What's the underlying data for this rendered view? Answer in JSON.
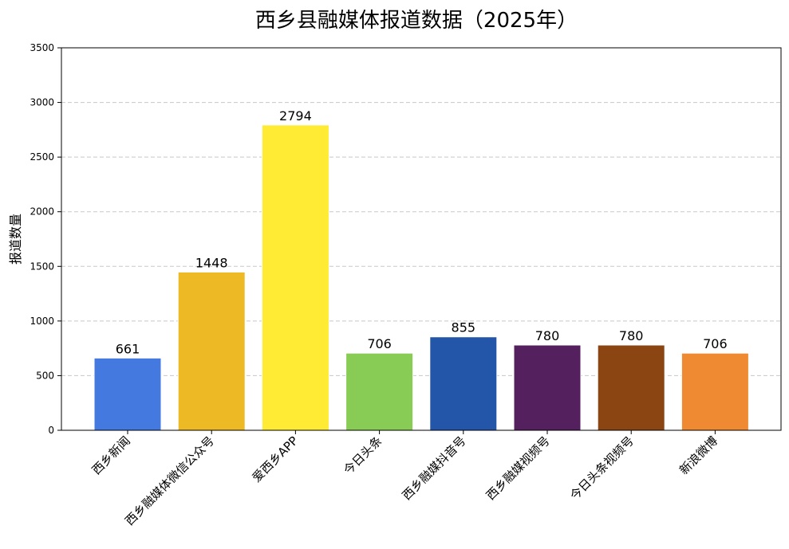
{
  "chart_data": {
    "type": "bar",
    "title": "西乡县融媒体报道数据（2025年）",
    "xlabel": "",
    "ylabel": "报道数量",
    "categories": [
      "西乡新闻",
      "西乡融媒体微信公众号",
      "爱西乡APP",
      "今日头条",
      "西乡融媒抖音号",
      "西乡融媒视频号",
      "今日头条视频号",
      "新浪微博"
    ],
    "values": [
      661,
      1448,
      2794,
      706,
      855,
      780,
      780,
      706
    ],
    "colors": [
      "#4479e0",
      "#edb924",
      "#ffeb33",
      "#89cc55",
      "#2355a8",
      "#55205e",
      "#8b4513",
      "#ef8a33"
    ],
    "ylim": [
      0,
      3500
    ],
    "yticks": [
      0,
      500,
      1000,
      1500,
      2000,
      2500,
      3000,
      3500
    ],
    "grid": true,
    "grid_axis": "y",
    "legend": "none"
  }
}
